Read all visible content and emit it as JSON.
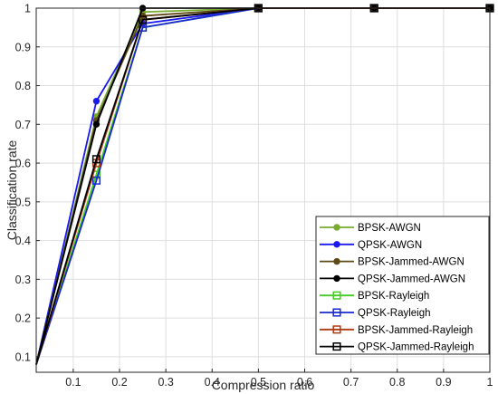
{
  "chart_data": {
    "type": "line",
    "title": "",
    "xlabel": "Compression ratio",
    "ylabel": "Classification rate",
    "xlim": [
      0.02,
      1.0
    ],
    "ylim": [
      0.06,
      1.0
    ],
    "xticks": [
      0.1,
      0.2,
      0.3,
      0.4,
      0.5,
      0.6,
      0.7,
      0.8,
      0.9,
      1
    ],
    "xtick_labels": [
      "0.1",
      "0.2",
      "0.3",
      "0.4",
      "0.5",
      "0.6",
      "0.7",
      "0.8",
      "0.9",
      "1"
    ],
    "yticks": [
      0.1,
      0.2,
      0.3,
      0.4,
      0.5,
      0.6,
      0.7,
      0.8,
      0.9,
      1
    ],
    "ytick_labels": [
      "0.1",
      "0.2",
      "0.3",
      "0.4",
      "0.5",
      "0.6",
      "0.7",
      "0.8",
      "0.9",
      "1"
    ],
    "grid": true,
    "legend_position": "bottom-right",
    "x": [
      0.02,
      0.15,
      0.25,
      0.5,
      0.75,
      1.0
    ],
    "series": [
      {
        "name": "BPSK-AWGN",
        "color": "#77ac30",
        "marker": "circle",
        "values": [
          0.08,
          0.72,
          0.99,
          1.0,
          1.0,
          1.0
        ]
      },
      {
        "name": "QPSK-AWGN",
        "color": "#1a1af0",
        "marker": "circle",
        "values": [
          0.08,
          0.76,
          0.96,
          1.0,
          1.0,
          1.0
        ]
      },
      {
        "name": "BPSK-Jammed-AWGN",
        "color": "#5e4a14",
        "marker": "circle",
        "values": [
          0.08,
          0.71,
          0.98,
          1.0,
          1.0,
          1.0
        ]
      },
      {
        "name": "QPSK-Jammed-AWGN",
        "color": "#000000",
        "marker": "circle",
        "values": [
          0.08,
          0.7,
          1.0,
          1.0,
          1.0,
          1.0
        ]
      },
      {
        "name": "BPSK-Rayleigh",
        "color": "#44cc22",
        "marker": "square",
        "values": [
          0.08,
          0.57,
          0.95,
          1.0,
          1.0,
          1.0
        ]
      },
      {
        "name": "QPSK-Rayleigh",
        "color": "#1a2ad0",
        "marker": "square",
        "values": [
          0.08,
          0.555,
          0.95,
          1.0,
          1.0,
          1.0
        ]
      },
      {
        "name": "BPSK-Jammed-Rayleigh",
        "color": "#b03a10",
        "marker": "square",
        "values": [
          0.08,
          0.6,
          0.97,
          1.0,
          1.0,
          1.0
        ]
      },
      {
        "name": "QPSK-Jammed-Rayleigh",
        "color": "#000000",
        "marker": "square",
        "values": [
          0.08,
          0.61,
          0.97,
          1.0,
          1.0,
          1.0
        ]
      }
    ]
  }
}
